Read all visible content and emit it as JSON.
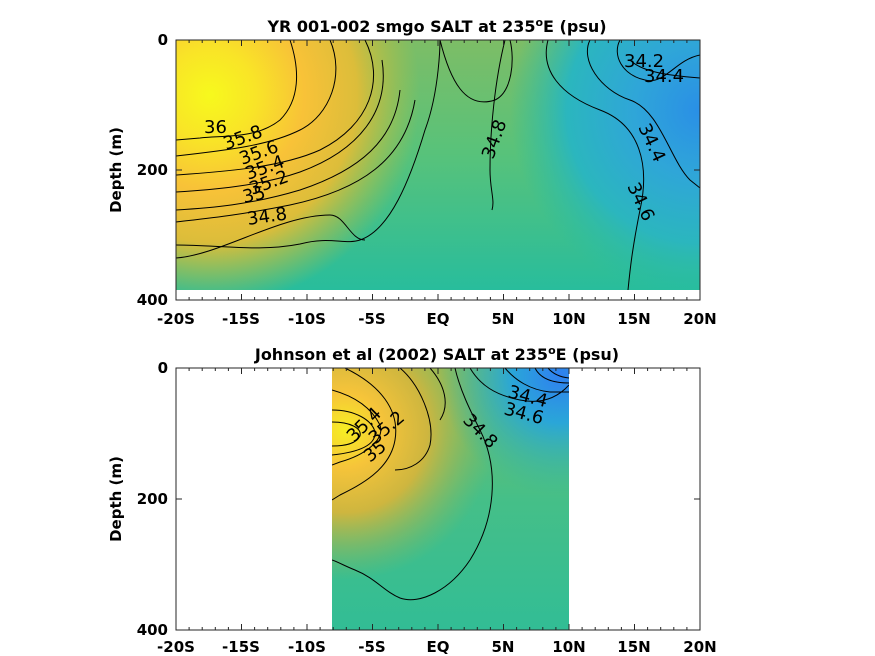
{
  "chart_data": [
    {
      "type": "contour",
      "title": "YR 001-002 smgo SALT at 235",
      "title_sup": "o",
      "title_tail": "E (psu)",
      "ylabel": "Depth (m)",
      "xlabel": "",
      "x_ticks": [
        "-20S",
        "-15S",
        "-10S",
        "-5S",
        "EQ",
        "5N",
        "10N",
        "15N",
        "20N"
      ],
      "y_ticks": [
        "0",
        "200",
        "400"
      ],
      "xlim": [
        -20,
        20
      ],
      "ylim": [
        0,
        400
      ],
      "y_reversed": true,
      "data_extent": {
        "x": [
          -20,
          20
        ],
        "depth": [
          0,
          383
        ]
      },
      "contour_labels": [
        {
          "text": "34.2",
          "x": 15.5,
          "depth": 25
        },
        {
          "text": "34.4",
          "x": 16.0,
          "depth": 55
        },
        {
          "text": "36",
          "x": -17.5,
          "depth": 130
        },
        {
          "text": "35.8",
          "x": -15.5,
          "depth": 145
        },
        {
          "text": "35.6",
          "x": -13.5,
          "depth": 158
        },
        {
          "text": "35.4",
          "x": -14.5,
          "depth": 183
        },
        {
          "text": "35.2",
          "x": -14.0,
          "depth": 207
        },
        {
          "text": "35",
          "x": -15.5,
          "depth": 234
        },
        {
          "text": "34.8",
          "x": -14.0,
          "depth": 270
        },
        {
          "text": "34.8",
          "x": 4.8,
          "depth": 150
        },
        {
          "text": "34.4",
          "x": 14.5,
          "depth": 165
        },
        {
          "text": "34.6",
          "x": 14.0,
          "depth": 250
        }
      ]
    },
    {
      "type": "contour",
      "title": "Johnson et al (2002) SALT at 235",
      "title_sup": "o",
      "title_tail": "E (psu)",
      "ylabel": "Depth (m)",
      "xlabel": "",
      "x_ticks": [
        "-20S",
        "-15S",
        "-10S",
        "-5S",
        "EQ",
        "5N",
        "10N",
        "15N",
        "20N"
      ],
      "y_ticks": [
        "0",
        "200",
        "400"
      ],
      "xlim": [
        -20,
        20
      ],
      "ylim": [
        0,
        400
      ],
      "y_reversed": true,
      "data_extent": {
        "x": [
          -8,
          10
        ],
        "depth": [
          0,
          400
        ]
      },
      "contour_labels": [
        {
          "text": "34.4",
          "x": 7.0,
          "depth": 40
        },
        {
          "text": "34.6",
          "x": 6.8,
          "depth": 65
        },
        {
          "text": "35.4",
          "x": -5.0,
          "depth": 100
        },
        {
          "text": "35.2",
          "x": -3.5,
          "depth": 95
        },
        {
          "text": "35",
          "x": -4.5,
          "depth": 130
        },
        {
          "text": "34.8",
          "x": 3.5,
          "depth": 100
        }
      ]
    }
  ]
}
